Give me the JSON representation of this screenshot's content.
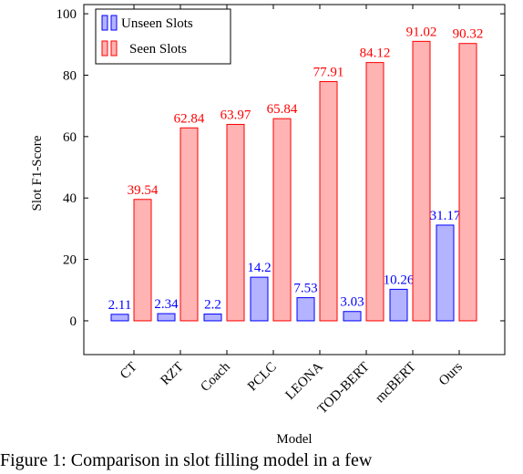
{
  "chart_data": {
    "type": "bar",
    "title": "",
    "xlabel": "Model",
    "ylabel": "Slot F1-Score",
    "ylim": [
      -11,
      103
    ],
    "yticks": [
      0,
      20,
      40,
      60,
      80,
      100
    ],
    "categories": [
      "CT",
      "RZT",
      "Coach",
      "PCLC",
      "LEONA",
      "TOD-BERT",
      "mcBERT",
      "Ours"
    ],
    "series": [
      {
        "name": "Unseen Slots",
        "values": [
          2.11,
          2.34,
          2.2,
          14.2,
          7.53,
          3.03,
          10.26,
          31.17
        ],
        "labels": [
          "2.11",
          "2.34",
          "2.2",
          "14.2",
          "7.53",
          "3.03",
          "10.26",
          "31.17"
        ],
        "fill": "#b3b3ff",
        "stroke": "#0000ff",
        "label_color": "#0000ff"
      },
      {
        "name": "Seen Slots",
        "values": [
          39.54,
          62.84,
          63.97,
          65.84,
          77.91,
          84.12,
          91.02,
          90.32
        ],
        "labels": [
          "39.54",
          "62.84",
          "63.97",
          "65.84",
          "77.91",
          "84.12",
          "91.02",
          "90.32"
        ],
        "fill": "#ffb3b3",
        "stroke": "#ff0000",
        "label_color": "#ff0000"
      }
    ],
    "grid": false,
    "legend_position": "top-left"
  },
  "caption": "Figure 1:  Comparison in slot filling model in a few"
}
